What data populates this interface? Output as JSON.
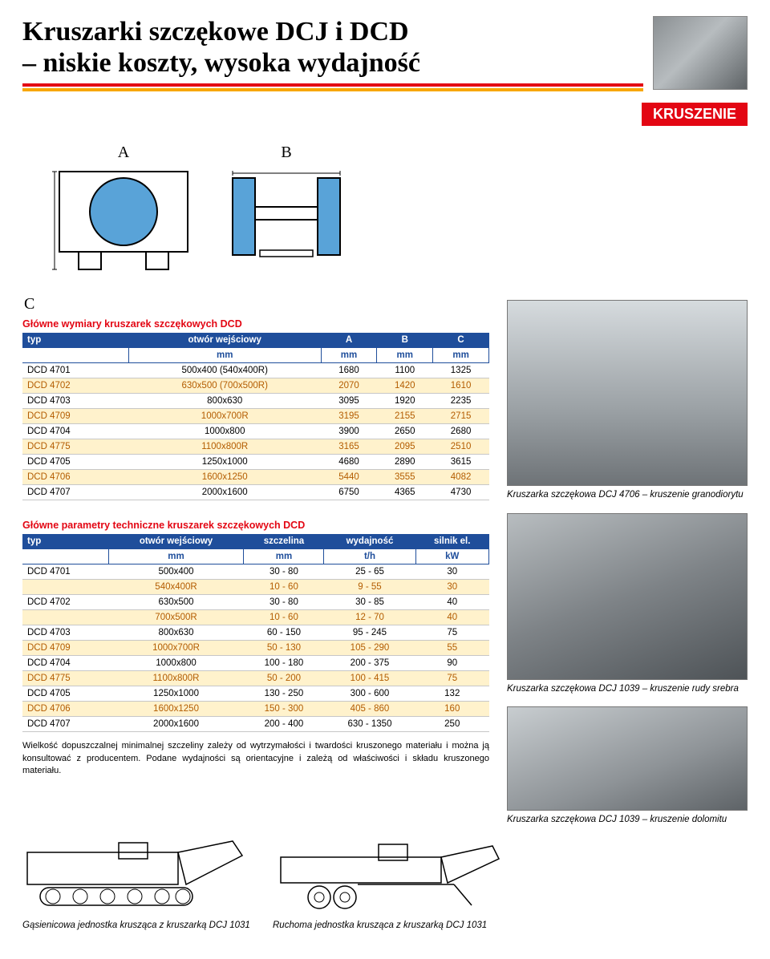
{
  "title_line1": "Kruszarki szczękowe DCJ i DCD",
  "title_line2": "– niskie koszty, wysoka wydajność",
  "section_tag": "KRUSZENIE",
  "diagram_labels": {
    "A": "A",
    "B": "B",
    "C": "C"
  },
  "table1": {
    "title": "Główne wymiary kruszarek szczękowych DCD",
    "headers": [
      "typ",
      "otwór wejściowy",
      "A",
      "B",
      "C"
    ],
    "units": [
      "",
      "mm",
      "mm",
      "mm",
      "mm"
    ],
    "rows": [
      [
        "DCD 4701",
        "500x400 (540x400R)",
        "1680",
        "1100",
        "1325"
      ],
      [
        "DCD 4702",
        "630x500 (700x500R)",
        "2070",
        "1420",
        "1610"
      ],
      [
        "DCD 4703",
        "800x630",
        "3095",
        "1920",
        "2235"
      ],
      [
        "DCD 4709",
        "1000x700R",
        "3195",
        "2155",
        "2715"
      ],
      [
        "DCD 4704",
        "1000x800",
        "3900",
        "2650",
        "2680"
      ],
      [
        "DCD 4775",
        "1100x800R",
        "3165",
        "2095",
        "2510"
      ],
      [
        "DCD 4705",
        "1250x1000",
        "4680",
        "2890",
        "3615"
      ],
      [
        "DCD 4706",
        "1600x1250",
        "5440",
        "3555",
        "4082"
      ],
      [
        "DCD 4707",
        "2000x1600",
        "6750",
        "4365",
        "4730"
      ]
    ]
  },
  "table2": {
    "title": "Główne parametry techniczne kruszarek szczękowych DCD",
    "headers": [
      "typ",
      "otwór wejściowy",
      "szczelina",
      "wydajność",
      "silnik el."
    ],
    "units": [
      "",
      "mm",
      "mm",
      "t/h",
      "kW"
    ],
    "rows": [
      [
        "DCD 4701",
        "500x400",
        "30 - 80",
        "25 - 65",
        "30"
      ],
      [
        "",
        "540x400R",
        "10 - 60",
        "9 - 55",
        "30"
      ],
      [
        "DCD 4702",
        "630x500",
        "30 - 80",
        "30 - 85",
        "40"
      ],
      [
        "",
        "700x500R",
        "10 - 60",
        "12 - 70",
        "40"
      ],
      [
        "DCD 4703",
        "800x630",
        "60 - 150",
        "95 - 245",
        "75"
      ],
      [
        "DCD 4709",
        "1000x700R",
        "50 - 130",
        "105 - 290",
        "55"
      ],
      [
        "DCD 4704",
        "1000x800",
        "100 - 180",
        "200 - 375",
        "90"
      ],
      [
        "DCD 4775",
        "1100x800R",
        "50 - 200",
        "100 - 415",
        "75"
      ],
      [
        "DCD 4705",
        "1250x1000",
        "130 - 250",
        "300 - 600",
        "132"
      ],
      [
        "DCD 4706",
        "1600x1250",
        "150 - 300",
        "405 - 860",
        "160"
      ],
      [
        "DCD 4707",
        "2000x1600",
        "200 - 400",
        "630 - 1350",
        "250"
      ]
    ]
  },
  "captions": {
    "photo1": "Kruszarka szczękowa DCJ 4706 – kruszenie granodiorytu",
    "photo2": "Kruszarka szczękowa DCJ 1039 – kruszenie rudy srebra",
    "photo3": "Kruszarka szczękowa DCJ 1039 – kruszenie dolomitu",
    "unit1": "Gąsienicowa jednostka krusząca z kruszarką DCJ 1031",
    "unit2": "Ruchoma jednostka krusząca z kruszarką DCJ 1031"
  },
  "note_text": "Wielkość dopuszczalnej minimalnej szczeliny zależy od wytrzymałości i twardości kruszonego materiału i można ją konsultować z producentem. Podane wydajności są orientacyjne i zależą od właściwości i składu kruszonego materiału.",
  "colors": {
    "red": "#e30613",
    "orange": "#f7a600",
    "header_blue": "#1f4e9b",
    "row_highlight": "#fff2cc",
    "row_highlight_text": "#b35c00",
    "diagram_fill": "#59a3d8",
    "diagram_stroke": "#000000"
  }
}
